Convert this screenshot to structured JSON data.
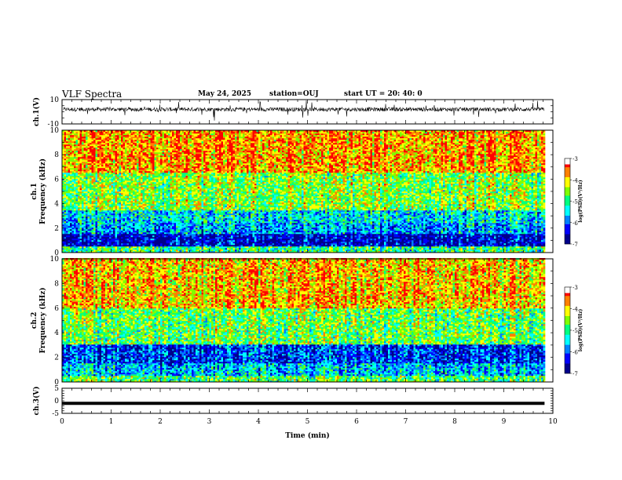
{
  "header": {
    "title": "VLF Spectra",
    "date": "May 24, 2025",
    "station": "station=OUJ",
    "start_ut": "start  UT =   20: 40: 0"
  },
  "colors": {
    "spectrogram_palette": [
      "#00008b",
      "#0000ff",
      "#0080ff",
      "#00ffff",
      "#00ff80",
      "#7fff00",
      "#ffff00",
      "#ff8000",
      "#ff0000"
    ],
    "trace": "#000000"
  },
  "chart_data": [
    {
      "type": "line",
      "name": "ch1-waveform",
      "ylabel": "ch.1(V)",
      "ylim": [
        -10,
        10
      ],
      "y_ticks": [
        "10",
        "-10"
      ],
      "xlim": [
        0,
        10
      ],
      "x_end_min": 9.83,
      "baseline_v": 2,
      "noise_amplitude_v": 4
    },
    {
      "type": "heatmap",
      "name": "ch1-spectrogram",
      "ylabel_channel": "ch.1",
      "ylabel": "Frequency (kHz)",
      "ylim": [
        0,
        10
      ],
      "y_ticks": [
        "0",
        "2",
        "4",
        "6",
        "8",
        "10"
      ],
      "xlim": [
        0,
        10
      ],
      "x_end_min": 9.83,
      "colorbar": {
        "label": "log(PSD)(V²/Hz)",
        "range": [
          -7,
          -3
        ],
        "ticks": [
          "-3",
          "-4",
          "-5",
          "-6",
          "-7"
        ]
      },
      "band_levels": [
        {
          "f_khz": [
            0,
            0.5
          ],
          "log_psd": -5.0
        },
        {
          "f_khz": [
            0.5,
            1.5
          ],
          "log_psd": -6.6
        },
        {
          "f_khz": [
            1.5,
            2.5
          ],
          "log_psd": -5.8
        },
        {
          "f_khz": [
            2.5,
            3.5
          ],
          "log_psd": -5.5
        },
        {
          "f_khz": [
            3.5,
            6.5
          ],
          "log_psd": -4.6
        },
        {
          "f_khz": [
            6.5,
            10
          ],
          "log_psd": -3.8
        }
      ]
    },
    {
      "type": "heatmap",
      "name": "ch2-spectrogram",
      "ylabel_channel": "ch.2",
      "ylabel": "Frequency (kHz)",
      "ylim": [
        0,
        10
      ],
      "y_ticks": [
        "0",
        "2",
        "4",
        "6",
        "8",
        "10"
      ],
      "xlim": [
        0,
        10
      ],
      "x_end_min": 9.83,
      "colorbar": {
        "label": "log(PSD)(V²/Hz)",
        "range": [
          -7,
          -3
        ],
        "ticks": [
          "-3",
          "-4",
          "-5",
          "-6",
          "-7"
        ]
      },
      "band_levels": [
        {
          "f_khz": [
            0,
            0.5
          ],
          "log_psd": -4.8
        },
        {
          "f_khz": [
            0.5,
            1.5
          ],
          "log_psd": -5.6
        },
        {
          "f_khz": [
            1.5,
            3.0
          ],
          "log_psd": -6.2
        },
        {
          "f_khz": [
            3.0,
            6.0
          ],
          "log_psd": -4.7
        },
        {
          "f_khz": [
            6.0,
            10
          ],
          "log_psd": -3.9
        }
      ]
    },
    {
      "type": "line",
      "name": "ch3-waveform",
      "ylabel": "ch.3(V)",
      "ylim": [
        -5,
        5
      ],
      "y_ticks": [
        "5",
        "0",
        "-5"
      ],
      "xlim": [
        0,
        10
      ],
      "x_end_min": 9.83,
      "constant_value_v": -1,
      "xlabel": "Time (min)",
      "x_ticks": [
        "0",
        "1",
        "2",
        "3",
        "4",
        "5",
        "6",
        "7",
        "8",
        "9",
        "10"
      ]
    }
  ]
}
